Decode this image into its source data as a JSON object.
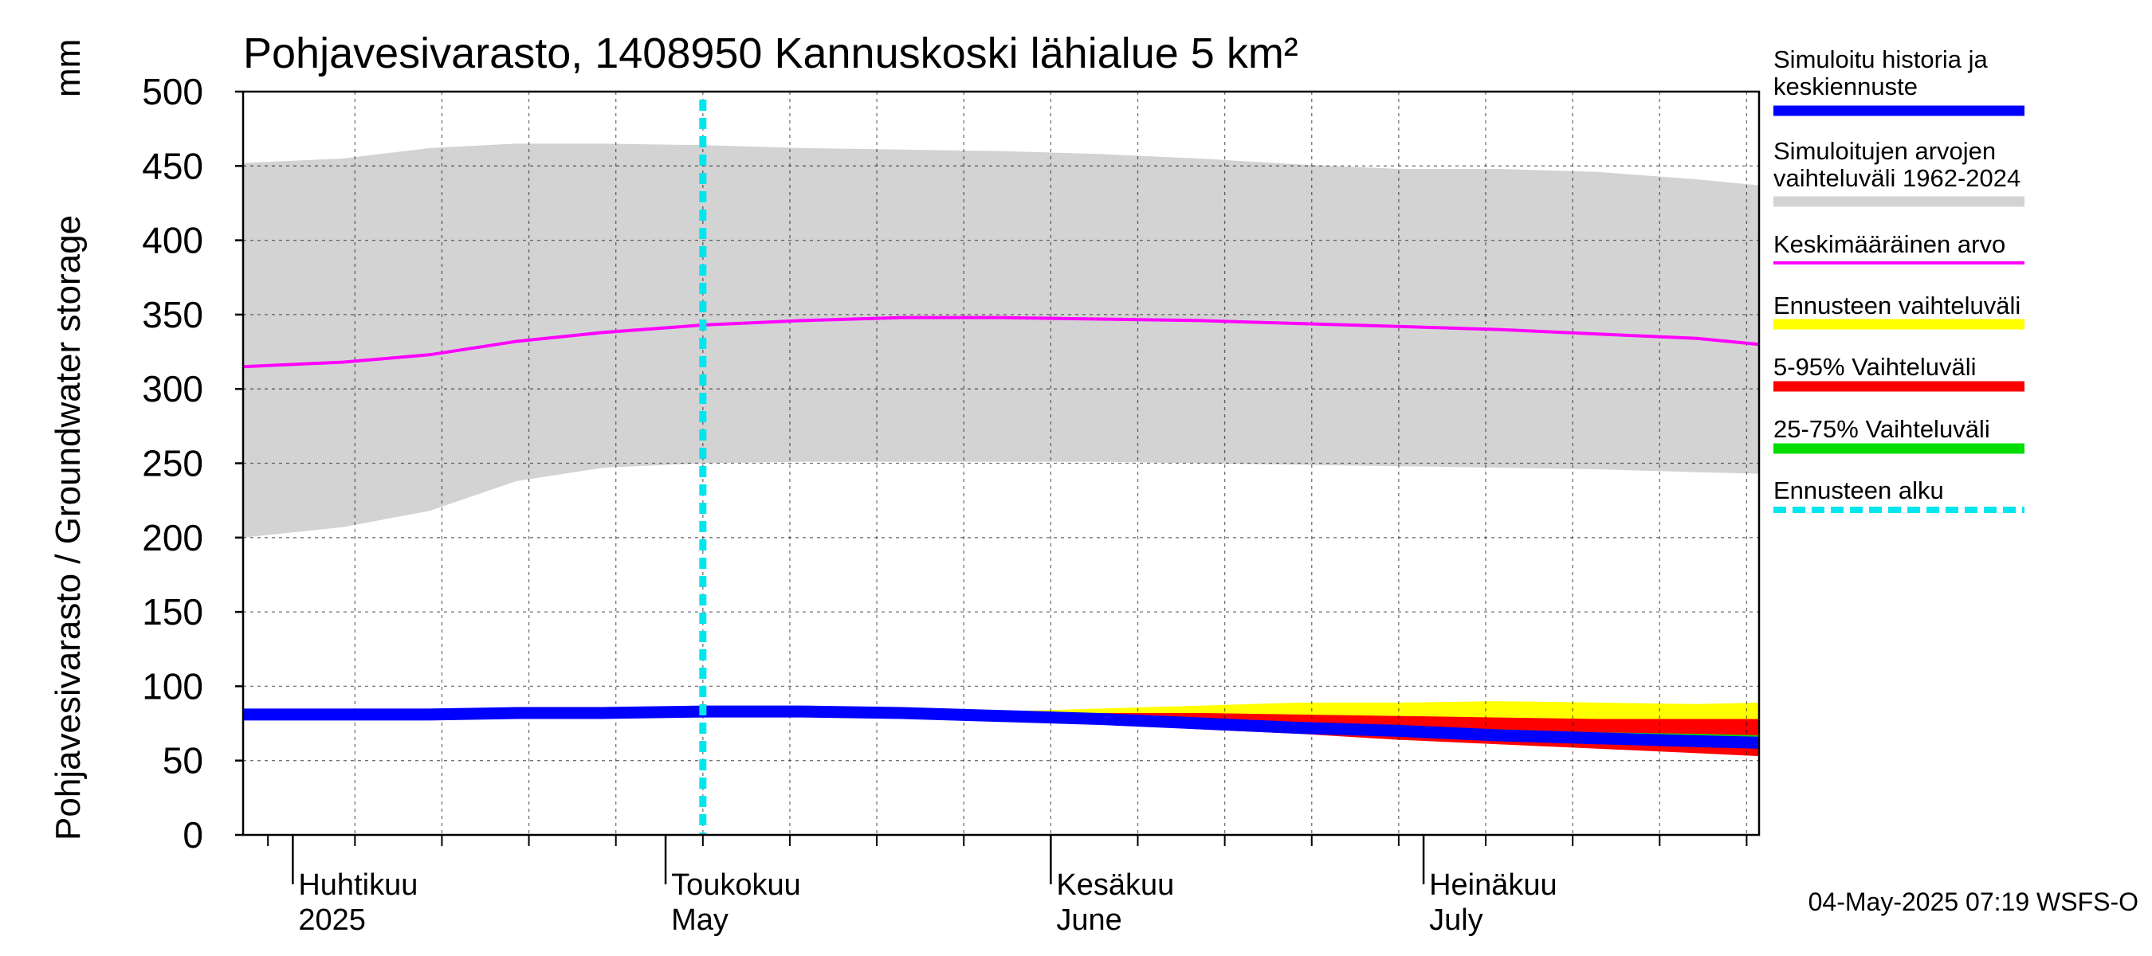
{
  "chart_data": {
    "type": "area",
    "title": "Pohjavesivarasto, 1408950 Kannuskoski lähialue 5 km²",
    "ylabel": "Pohjavesivarasto / Groundwater storage",
    "yunit": "mm",
    "ylim": [
      0,
      500
    ],
    "yticks": [
      0,
      50,
      100,
      150,
      200,
      250,
      300,
      350,
      400,
      450,
      500
    ],
    "xlim": [
      "2025-03-28",
      "2025-07-28"
    ],
    "grid": true,
    "legend_placement": "right",
    "x": [
      "2025-03-28",
      "2025-04-05",
      "2025-04-12",
      "2025-04-19",
      "2025-04-26",
      "2025-05-04",
      "2025-05-12",
      "2025-05-20",
      "2025-05-28",
      "2025-06-05",
      "2025-06-13",
      "2025-06-21",
      "2025-06-29",
      "2025-07-07",
      "2025-07-15",
      "2025-07-23",
      "2025-07-28"
    ],
    "month_labels": [
      {
        "date": "2025-04-01",
        "fi": "Huhtikuu",
        "en": "2025"
      },
      {
        "date": "2025-05-01",
        "fi": "Toukokuu",
        "en": "May"
      },
      {
        "date": "2025-06-01",
        "fi": "Kesäkuu",
        "en": "June"
      },
      {
        "date": "2025-07-01",
        "fi": "Heinäkuu",
        "en": "July"
      }
    ],
    "forecast_start": "2025-05-04",
    "series": [
      {
        "name": "Simuloitujen arvojen vaihteluväli 1962-2024",
        "color": "#d3d3d3",
        "upper": [
          452,
          455,
          462,
          465,
          465,
          464,
          462,
          461,
          460,
          458,
          455,
          451,
          448,
          448,
          446,
          441,
          437
        ],
        "lower": [
          200,
          207,
          218,
          238,
          247,
          250,
          251,
          251,
          251,
          251,
          250,
          249,
          248,
          247,
          246,
          244,
          243
        ]
      },
      {
        "name": "Keskimääräinen arvo",
        "color": "#ff00ff",
        "values": [
          315,
          318,
          323,
          332,
          338,
          343,
          346,
          348,
          348,
          347,
          346,
          344,
          342,
          340,
          337,
          334,
          330
        ]
      },
      {
        "name": "Ennusteen vaihteluväli",
        "color": "#ffff00",
        "upper": [
          null,
          null,
          null,
          null,
          null,
          83,
          83,
          83,
          83,
          85,
          87,
          89,
          89,
          90,
          89,
          88,
          89
        ],
        "lower": [
          null,
          null,
          null,
          null,
          null,
          83,
          83,
          82,
          80,
          77,
          74,
          70,
          67,
          63,
          60,
          57,
          55
        ]
      },
      {
        "name": "5-95% Vaihteluväli",
        "color": "#ff0000",
        "upper": [
          null,
          null,
          null,
          null,
          null,
          83,
          83,
          82,
          82,
          82,
          82,
          81,
          80,
          79,
          78,
          78,
          78
        ],
        "lower": [
          null,
          null,
          null,
          null,
          null,
          83,
          83,
          81,
          78,
          75,
          71,
          68,
          64,
          61,
          58,
          55,
          53
        ]
      },
      {
        "name": "25-75% Vaihteluväli",
        "color": "#00dd00",
        "upper": [
          null,
          null,
          null,
          null,
          null,
          83,
          83,
          82,
          80,
          79,
          77,
          75,
          73,
          71,
          69,
          68,
          67
        ],
        "lower": [
          null,
          null,
          null,
          null,
          null,
          83,
          83,
          81,
          79,
          77,
          74,
          71,
          68,
          66,
          63,
          61,
          60
        ]
      },
      {
        "name": "Simuloitu historia ja keskiennuste",
        "color": "#0000ff",
        "values": [
          81,
          81,
          81,
          82,
          82,
          83,
          83,
          82,
          80,
          78,
          75,
          72,
          70,
          67,
          65,
          63,
          62
        ]
      }
    ]
  },
  "legend": [
    {
      "lines": [
        "Simuloitu historia ja",
        "keskiennuste"
      ],
      "color": "#0000ff",
      "style": "solid"
    },
    {
      "lines": [
        "Simuloitujen arvojen",
        "vaihteluväli 1962-2024"
      ],
      "color": "#d3d3d3",
      "style": "solid"
    },
    {
      "lines": [
        "Keskimääräinen arvo"
      ],
      "color": "#ff00ff",
      "style": "thin"
    },
    {
      "lines": [
        "Ennusteen vaihteluväli"
      ],
      "color": "#ffff00",
      "style": "solid"
    },
    {
      "lines": [
        "5-95% Vaihteluväli"
      ],
      "color": "#ff0000",
      "style": "solid"
    },
    {
      "lines": [
        "25-75% Vaihteluväli"
      ],
      "color": "#00dd00",
      "style": "solid"
    },
    {
      "lines": [
        "Ennusteen alku"
      ],
      "color": "#00e5ee",
      "style": "dashed"
    }
  ],
  "footer": "04-May-2025 07:19 WSFS-O"
}
